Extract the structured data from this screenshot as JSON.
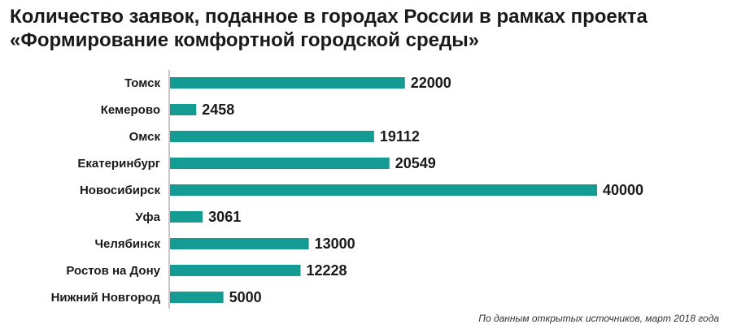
{
  "chart_data": {
    "type": "bar",
    "orientation": "horizontal",
    "title_line1": "Количество заявок, поданное в городах России в рамках проекта",
    "title_line2": "«Формирование комфортной городской среды»",
    "categories": [
      "Томск",
      "Кемерово",
      "Омск",
      "Екатеринбург",
      "Новосибирск",
      "Уфа",
      "Челябинск",
      "Ростов на Дону",
      "Нижний Новгород"
    ],
    "values": [
      22000,
      2458,
      19112,
      20549,
      40000,
      3061,
      13000,
      12228,
      5000
    ],
    "value_labels": [
      "22000",
      "2458",
      "19112",
      "20549",
      "40000",
      "3061",
      "13000",
      "12228",
      "5000"
    ],
    "highlight_index": 4,
    "xlim": [
      0,
      40000
    ],
    "grid": false,
    "legend": "none",
    "source": "По данным открытых источников, март 2018 года",
    "colors": {
      "bar": "#139b94",
      "highlight_label": "#e8141b",
      "text": "#1a1a1a",
      "axis": "#8c8c8c"
    }
  }
}
